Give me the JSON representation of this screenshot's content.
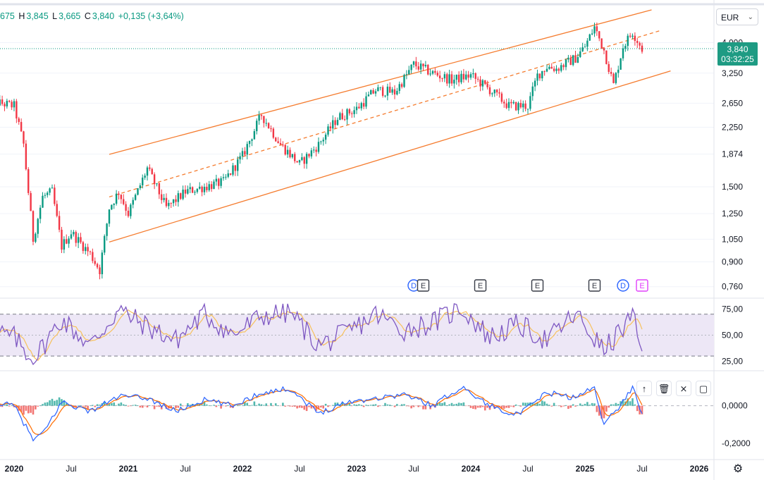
{
  "header": {
    "open_value": "675",
    "h_label": "H",
    "h_value": "3,845",
    "l_label": "L",
    "l_value": "3,665",
    "c_label": "C",
    "c_value": "3,840",
    "change": "+0,135 (+3,64%)"
  },
  "currency_select": {
    "value": "EUR"
  },
  "last_price": {
    "price": "3,840",
    "countdown": "03:32:25",
    "color": "#1e9b83"
  },
  "colors": {
    "up": "#089981",
    "down": "#f23645",
    "channel": "#f57c2f",
    "rsi": "#7e57c2",
    "rsi_ma": "#f7c15c",
    "rsi_band": "#ede7f6",
    "macd": "#2962ff",
    "signal": "#ff6d00"
  },
  "chart_data": [
    {
      "type": "line",
      "title": "",
      "y_scale": "log",
      "ylim": [
        0.72,
        5.0
      ],
      "y_ticks": [
        "4,000",
        "3,250",
        "2,650",
        "2,250",
        "1,874",
        "1,500",
        "1,250",
        "1,050",
        "0,900",
        "0,760"
      ],
      "x_ticks": [
        "2020",
        "Jul",
        "2021",
        "Jul",
        "2022",
        "Jul",
        "2023",
        "Jul",
        "2024",
        "Jul",
        "2025",
        "Jul",
        "2026"
      ],
      "series": [
        {
          "x": [
            "2019-10",
            "2020-01",
            "2020-02",
            "2020-03",
            "2020-04",
            "2020-05",
            "2020-06",
            "2020-07",
            "2020-09",
            "2020-10",
            "2020-11",
            "2020-12",
            "2021-01",
            "2021-03",
            "2021-05",
            "2021-07",
            "2021-09",
            "2021-11",
            "2022-01",
            "2022-03",
            "2022-05",
            "2022-07",
            "2022-09",
            "2022-11",
            "2023-01",
            "2023-03",
            "2023-05",
            "2023-07",
            "2023-09",
            "2023-11",
            "2024-01",
            "2024-03",
            "2024-05",
            "2024-07",
            "2024-08",
            "2024-09",
            "2024-10",
            "2024-12",
            "2025-01",
            "2025-02",
            "2025-03",
            "2025-04",
            "2025-05",
            "2025-06",
            "2025-07"
          ],
          "values": [
            2.7,
            2.6,
            2.0,
            1.05,
            1.4,
            1.45,
            1.0,
            1.1,
            0.95,
            0.85,
            1.3,
            1.45,
            1.25,
            1.7,
            1.3,
            1.45,
            1.5,
            1.55,
            1.85,
            2.45,
            2.0,
            1.75,
            2.0,
            2.4,
            2.55,
            2.9,
            2.85,
            3.45,
            3.25,
            3.1,
            3.2,
            2.9,
            2.6,
            2.6,
            3.2,
            3.4,
            3.35,
            3.6,
            3.9,
            4.45,
            3.8,
            3.0,
            3.9,
            4.3,
            3.84
          ]
        }
      ],
      "trend_channel": {
        "upper": [
          [
            "2020-11",
            1.87
          ],
          [
            "2025-08",
            5.0
          ]
        ],
        "middle": [
          [
            "2020-11",
            1.4
          ],
          [
            "2025-09",
            4.35
          ]
        ],
        "lower": [
          [
            "2020-11",
            1.03
          ],
          [
            "2025-10",
            3.3
          ]
        ]
      },
      "events": [
        {
          "label": "D",
          "date": "2023-07",
          "kind": "dividend"
        },
        {
          "label": "E",
          "date": "2023-08",
          "kind": "earnings"
        },
        {
          "label": "E",
          "date": "2024-02",
          "kind": "earnings"
        },
        {
          "label": "E",
          "date": "2024-08",
          "kind": "earnings"
        },
        {
          "label": "E",
          "date": "2025-02",
          "kind": "earnings"
        },
        {
          "label": "D",
          "date": "2025-05",
          "kind": "dividend"
        },
        {
          "label": "E",
          "date": "2025-07",
          "kind": "earnings-upcoming"
        }
      ]
    },
    {
      "type": "line",
      "title": "",
      "ylim": [
        20,
        82
      ],
      "y_ticks": [
        "75,00",
        "50,00",
        "25,00"
      ],
      "bands": [
        30,
        70
      ],
      "series": [
        {
          "x": [
            "2019-10",
            "2020-01",
            "2020-03",
            "2020-06",
            "2020-09",
            "2020-12",
            "2021-03",
            "2021-06",
            "2021-09",
            "2021-12",
            "2022-03",
            "2022-06",
            "2022-09",
            "2022-12",
            "2023-03",
            "2023-06",
            "2023-09",
            "2023-12",
            "2024-03",
            "2024-06",
            "2024-09",
            "2024-12",
            "2025-03",
            "2025-06",
            "2025-07"
          ],
          "values": [
            55,
            48,
            26,
            65,
            40,
            74,
            58,
            45,
            70,
            50,
            68,
            72,
            40,
            52,
            70,
            55,
            62,
            76,
            48,
            60,
            45,
            70,
            35,
            68,
            30
          ]
        }
      ]
    },
    {
      "type": "bar",
      "title": "",
      "ylim": [
        -0.27,
        0.17
      ],
      "y_ticks": [
        "0,0000",
        "-0,2000"
      ],
      "series": [
        {
          "x": [
            "2019-10",
            "2020-01",
            "2020-03",
            "2020-04",
            "2020-06",
            "2020-09",
            "2020-12",
            "2021-03",
            "2021-06",
            "2021-09",
            "2021-12",
            "2022-03",
            "2022-06",
            "2022-09",
            "2022-12",
            "2023-03",
            "2023-06",
            "2023-09",
            "2023-12",
            "2024-03",
            "2024-06",
            "2024-09",
            "2024-12",
            "2025-02",
            "2025-03",
            "2025-05",
            "2025-06",
            "2025-07"
          ],
          "values": [
            0.02,
            0.0,
            -0.18,
            -0.15,
            0.02,
            -0.03,
            0.05,
            0.04,
            -0.03,
            0.03,
            0.0,
            0.07,
            0.09,
            -0.04,
            0.02,
            0.04,
            0.06,
            0.0,
            0.1,
            0.0,
            -0.05,
            0.07,
            0.04,
            0.1,
            -0.1,
            0.02,
            0.1,
            -0.04
          ]
        }
      ]
    }
  ]
}
